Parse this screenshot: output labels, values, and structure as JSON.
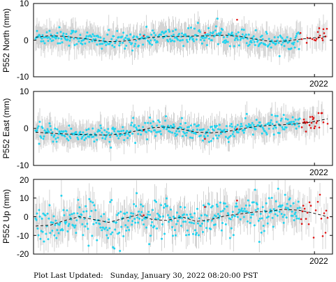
{
  "chart_data": [
    {
      "type": "scatter",
      "ylabel": "P552 North (mm)",
      "yticks": [
        10,
        0,
        -10
      ],
      "ylim": [
        -10,
        10
      ],
      "xtick_label": "2022",
      "trend": [
        [
          0,
          0.8
        ],
        [
          0.05,
          1.2
        ],
        [
          0.1,
          1.0
        ],
        [
          0.15,
          0.6
        ],
        [
          0.2,
          0.0
        ],
        [
          0.25,
          -0.4
        ],
        [
          0.3,
          -0.3
        ],
        [
          0.35,
          0.3
        ],
        [
          0.4,
          0.8
        ],
        [
          0.45,
          1.0
        ],
        [
          0.5,
          1.0
        ],
        [
          0.55,
          1.1
        ],
        [
          0.6,
          1.2
        ],
        [
          0.65,
          1.4
        ],
        [
          0.7,
          1.0
        ],
        [
          0.75,
          0.3
        ],
        [
          0.8,
          -0.3
        ],
        [
          0.85,
          -0.3
        ],
        [
          0.9,
          0.2
        ],
        [
          0.95,
          0.6
        ],
        [
          1.0,
          1.0
        ]
      ]
    },
    {
      "type": "scatter",
      "ylabel": "P552 East (mm)",
      "yticks": [
        10,
        0,
        -10
      ],
      "ylim": [
        -10,
        10
      ],
      "xtick_label": "2022",
      "trend": [
        [
          0,
          -1.0
        ],
        [
          0.05,
          -1.3
        ],
        [
          0.1,
          -1.5
        ],
        [
          0.15,
          -1.6
        ],
        [
          0.2,
          -1.7
        ],
        [
          0.25,
          -1.8
        ],
        [
          0.3,
          -1.4
        ],
        [
          0.35,
          -0.6
        ],
        [
          0.4,
          0.2
        ],
        [
          0.45,
          0.4
        ],
        [
          0.5,
          -0.2
        ],
        [
          0.55,
          -1.0
        ],
        [
          0.6,
          -1.2
        ],
        [
          0.65,
          -0.9
        ],
        [
          0.7,
          -0.2
        ],
        [
          0.75,
          0.5
        ],
        [
          0.8,
          0.8
        ],
        [
          0.85,
          1.0
        ],
        [
          0.9,
          1.3
        ],
        [
          0.95,
          1.8
        ],
        [
          1.0,
          2.6
        ]
      ]
    },
    {
      "type": "scatter",
      "ylabel": "P552 Up (mm)",
      "yticks": [
        20,
        10,
        0,
        -10,
        -20
      ],
      "ylim": [
        -20,
        20
      ],
      "xtick_label": "2022",
      "trend": [
        [
          0,
          -5.0
        ],
        [
          0.05,
          -4.5
        ],
        [
          0.1,
          -2.0
        ],
        [
          0.15,
          0.0
        ],
        [
          0.2,
          -1.5
        ],
        [
          0.25,
          -3.0
        ],
        [
          0.3,
          -1.0
        ],
        [
          0.35,
          1.0
        ],
        [
          0.4,
          -1.5
        ],
        [
          0.45,
          -2.0
        ],
        [
          0.5,
          0.0
        ],
        [
          0.55,
          -2.5
        ],
        [
          0.6,
          -1.5
        ],
        [
          0.65,
          0.5
        ],
        [
          0.7,
          1.5
        ],
        [
          0.75,
          2.5
        ],
        [
          0.8,
          3.0
        ],
        [
          0.85,
          4.0
        ],
        [
          0.9,
          3.5
        ],
        [
          0.95,
          2.0
        ],
        [
          1.0,
          0.0
        ]
      ]
    }
  ],
  "colors": {
    "main_points": "#22d3ee",
    "recent_points": "#e01010",
    "error_bars": "#c9c9c9",
    "trend_line": "#000000"
  },
  "footer": {
    "label": "Plot Last Updated:",
    "datetime": "Sunday, January 30, 2022 08:20:00 PST"
  }
}
